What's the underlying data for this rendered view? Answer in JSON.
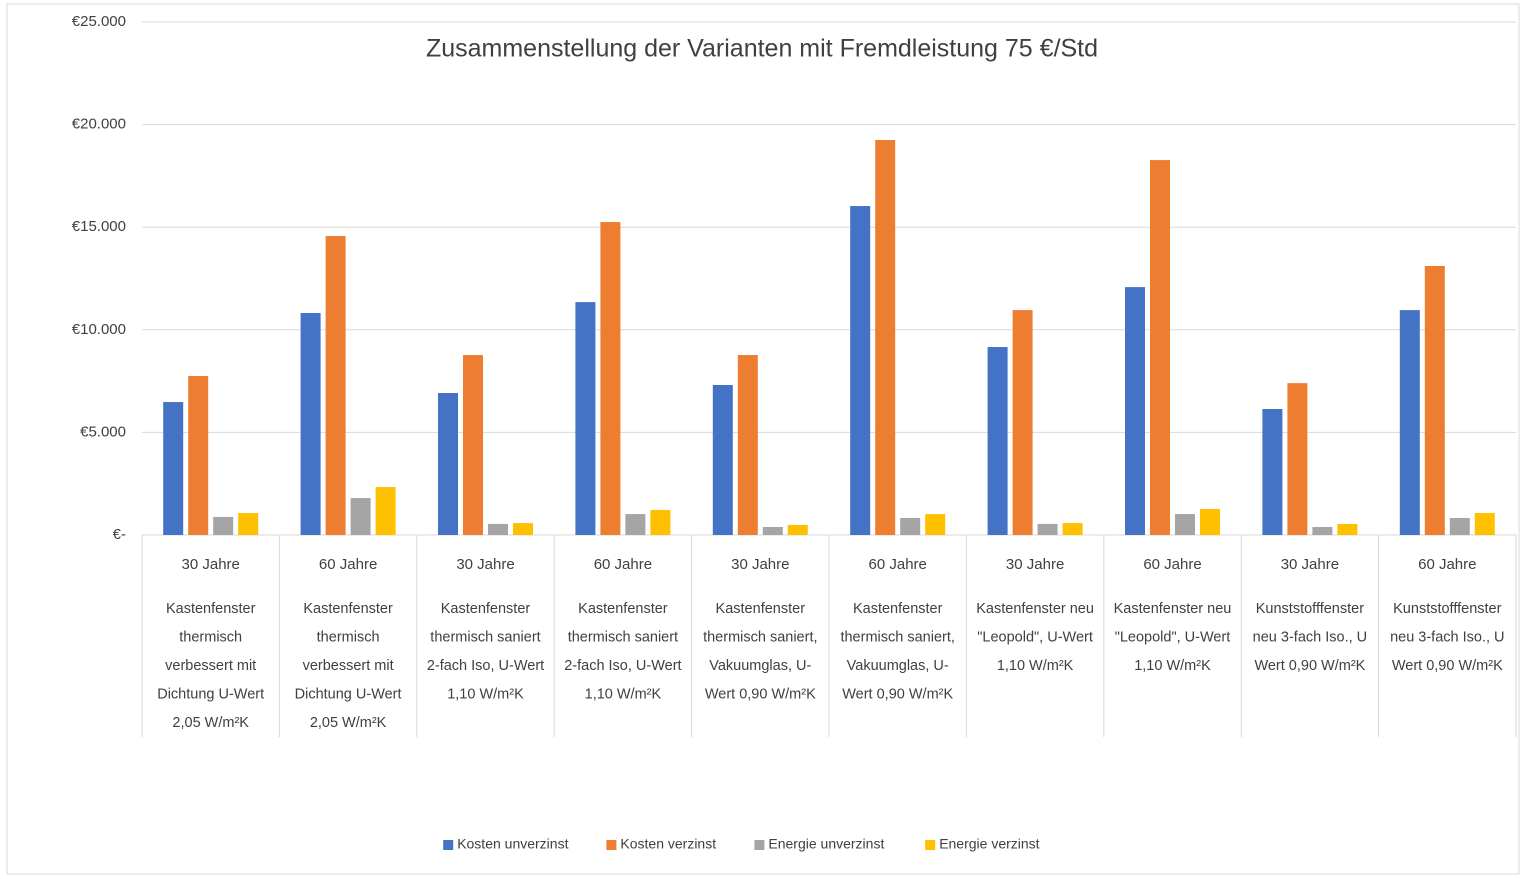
{
  "chart_data": {
    "type": "bar",
    "title": "Zusammenstellung der Varianten mit Fremdleistung 75 €/Std",
    "categories": [
      "30 Jahre",
      "60 Jahre",
      "30 Jahre",
      "60 Jahre",
      "30 Jahre",
      "60 Jahre",
      "30 Jahre",
      "60 Jahre",
      "30 Jahre",
      "60 Jahre"
    ],
    "category_groups": [
      [
        "Kastenfenster",
        "thermisch",
        "verbessert mit",
        "Dichtung U-Wert",
        "2,05 W/m²K"
      ],
      [
        "Kastenfenster",
        "thermisch",
        "verbessert mit",
        "Dichtung U-Wert",
        "2,05 W/m²K"
      ],
      [
        "Kastenfenster",
        "thermisch saniert",
        "2-fach Iso, U-Wert",
        "1,10 W/m²K"
      ],
      [
        "Kastenfenster",
        "thermisch saniert",
        "2-fach Iso, U-Wert",
        "1,10 W/m²K"
      ],
      [
        "Kastenfenster",
        "thermisch saniert,",
        "Vakuumglas, U-",
        "Wert 0,90 W/m²K"
      ],
      [
        "Kastenfenster",
        "thermisch saniert,",
        "Vakuumglas, U-",
        "Wert 0,90 W/m²K"
      ],
      [
        "Kastenfenster neu",
        "\"Leopold\", U-Wert",
        "1,10 W/m²K"
      ],
      [
        "Kastenfenster neu",
        "\"Leopold\", U-Wert",
        "1,10 W/m²K"
      ],
      [
        "Kunststofffenster",
        "neu 3-fach Iso., U",
        "Wert 0,90 W/m²K"
      ],
      [
        "Kunststofffenster",
        "neu 3-fach Iso., U",
        "Wert 0,90 W/m²K"
      ]
    ],
    "series": [
      {
        "name": "Kosten unverzinst",
        "color": "#4472c4",
        "values": [
          6480,
          10820,
          6920,
          11350,
          7310,
          16030,
          9160,
          12080,
          6140,
          10960
        ]
      },
      {
        "name": "Kosten verzinst",
        "color": "#ed7d31",
        "values": [
          7750,
          14570,
          8770,
          15250,
          8770,
          19250,
          10960,
          18270,
          7400,
          13110
        ]
      },
      {
        "name": "Energie unverzinst",
        "color": "#a5a5a5",
        "values": [
          880,
          1800,
          540,
          1020,
          390,
          830,
          540,
          1020,
          390,
          830
        ]
      },
      {
        "name": "Energie verzinst",
        "color": "#ffc000",
        "values": [
          1070,
          2340,
          580,
          1220,
          490,
          1020,
          580,
          1270,
          540,
          1070
        ]
      }
    ],
    "ylim": [
      0,
      25000
    ],
    "yticks": [
      {
        "value": 0,
        "label": "€-"
      },
      {
        "value": 5000,
        "label": "€5.000"
      },
      {
        "value": 10000,
        "label": "€10.000"
      },
      {
        "value": 15000,
        "label": "€15.000"
      },
      {
        "value": 20000,
        "label": "€20.000"
      },
      {
        "value": 25000,
        "label": "€25.000"
      }
    ],
    "grid": true,
    "legend": "bottom"
  }
}
